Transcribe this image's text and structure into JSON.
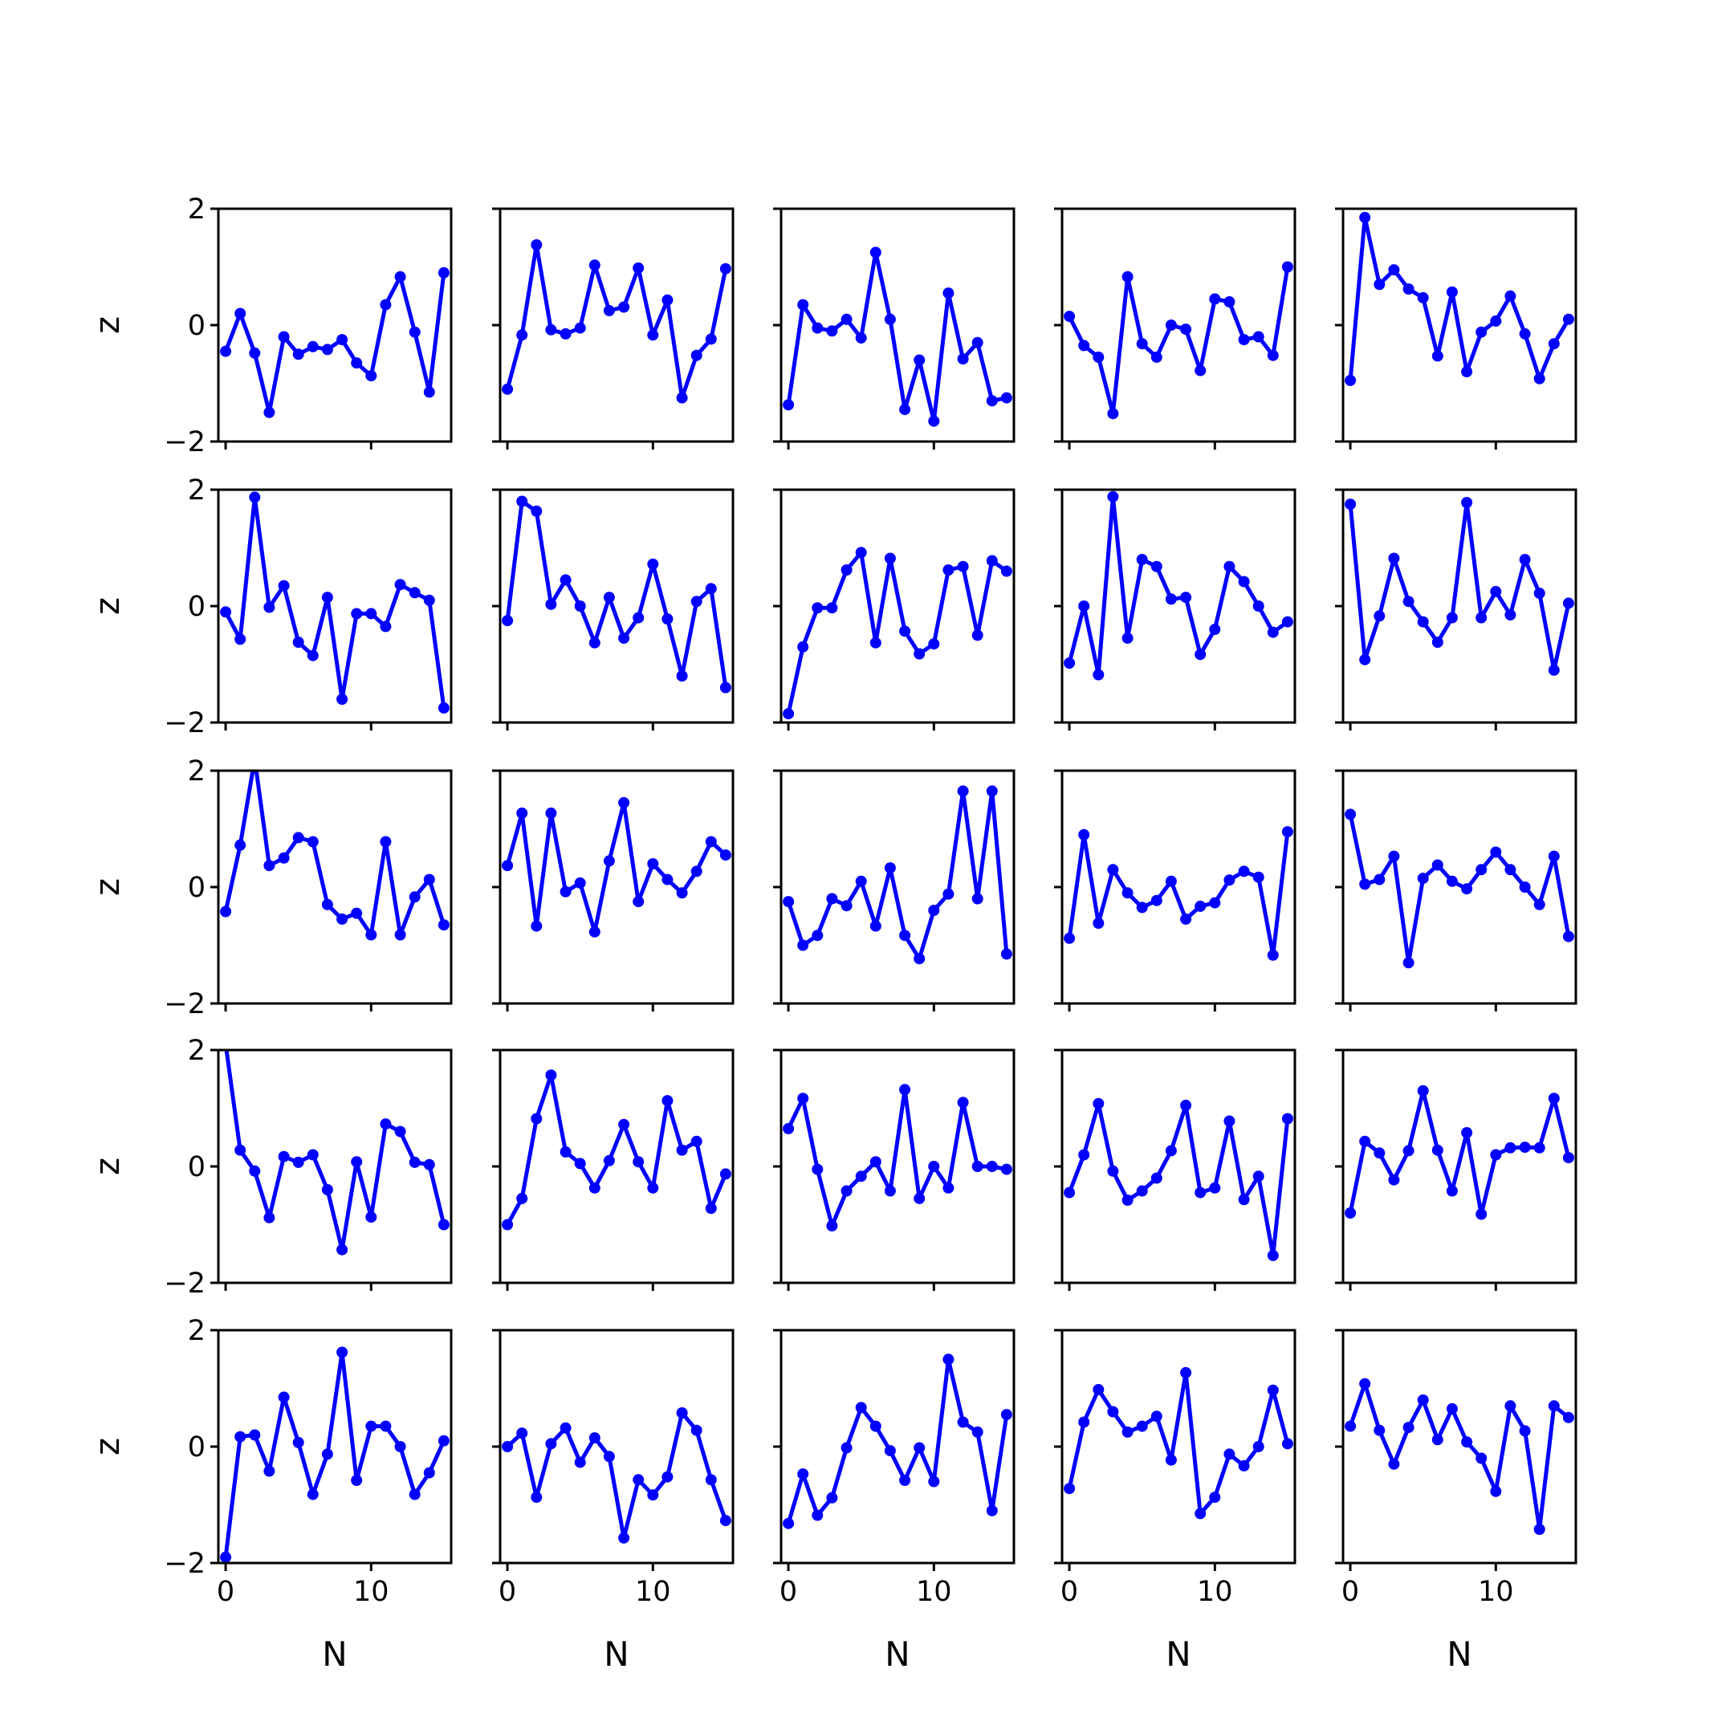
{
  "chart_data": {
    "type": "line",
    "layout": "grid 5x5",
    "sharex": true,
    "sharey": true,
    "xlabel": "N",
    "ylabel": "z",
    "xlim": [
      -0.5,
      15.5
    ],
    "ylim": [
      -2,
      2
    ],
    "xticks": [
      0,
      10
    ],
    "yticks": [
      -2,
      0,
      2
    ],
    "x": [
      0,
      1,
      2,
      3,
      4,
      5,
      6,
      7,
      8,
      9,
      10,
      11,
      12,
      13,
      14,
      15
    ],
    "color": "#0000ff",
    "marker": "circle",
    "panels": [
      {
        "values": [
          -0.45,
          0.2,
          -0.48,
          -1.5,
          -0.2,
          -0.5,
          -0.37,
          -0.42,
          -0.25,
          -0.65,
          -0.87,
          0.35,
          0.83,
          -0.12,
          -1.15,
          0.9
        ]
      },
      {
        "values": [
          -1.1,
          -0.17,
          1.38,
          -0.08,
          -0.15,
          -0.05,
          1.03,
          0.25,
          0.31,
          0.98,
          -0.17,
          0.43,
          -1.25,
          -0.52,
          -0.24,
          0.97
        ]
      },
      {
        "values": [
          -1.37,
          0.35,
          -0.05,
          -0.1,
          0.1,
          -0.22,
          1.25,
          0.1,
          -1.45,
          -0.6,
          -1.65,
          0.55,
          -0.58,
          -0.3,
          -1.3,
          -1.25
        ]
      },
      {
        "values": [
          0.15,
          -0.35,
          -0.55,
          -1.52,
          0.83,
          -0.32,
          -0.55,
          0.0,
          -0.07,
          -0.78,
          0.45,
          0.4,
          -0.25,
          -0.2,
          -0.52,
          1.0
        ]
      },
      {
        "values": [
          -0.95,
          1.85,
          0.7,
          0.95,
          0.62,
          0.47,
          -0.53,
          0.57,
          -0.8,
          -0.12,
          0.07,
          0.5,
          -0.15,
          -0.92,
          -0.32,
          0.1
        ]
      },
      {
        "values": [
          -0.1,
          -0.57,
          1.87,
          -0.02,
          0.35,
          -0.62,
          -0.85,
          0.15,
          -1.6,
          -0.13,
          -0.13,
          -0.35,
          0.37,
          0.23,
          0.1,
          -1.75
        ]
      },
      {
        "values": [
          -0.25,
          1.8,
          1.63,
          0.03,
          0.45,
          0.0,
          -0.63,
          0.15,
          -0.55,
          -0.2,
          0.72,
          -0.22,
          -1.2,
          0.08,
          0.3,
          -1.4
        ]
      },
      {
        "values": [
          -1.85,
          -0.7,
          -0.03,
          -0.03,
          0.62,
          0.92,
          -0.63,
          0.82,
          -0.43,
          -0.82,
          -0.65,
          0.62,
          0.68,
          -0.5,
          0.78,
          0.6
        ]
      },
      {
        "values": [
          -0.98,
          0.0,
          -1.18,
          1.88,
          -0.55,
          0.8,
          0.68,
          0.12,
          0.15,
          -0.83,
          -0.4,
          0.68,
          0.42,
          0.0,
          -0.45,
          -0.27
        ]
      },
      {
        "values": [
          1.75,
          -0.92,
          -0.17,
          0.82,
          0.08,
          -0.27,
          -0.62,
          -0.2,
          1.78,
          -0.2,
          0.25,
          -0.15,
          0.8,
          0.22,
          -1.1,
          0.05
        ]
      },
      {
        "values": [
          -0.42,
          0.72,
          2.2,
          0.37,
          0.5,
          0.85,
          0.78,
          -0.3,
          -0.55,
          -0.45,
          -0.82,
          0.78,
          -0.82,
          -0.17,
          0.13,
          -0.65
        ]
      },
      {
        "values": [
          0.37,
          1.27,
          -0.67,
          1.27,
          -0.08,
          0.07,
          -0.77,
          0.45,
          1.45,
          -0.25,
          0.4,
          0.13,
          -0.1,
          0.27,
          0.78,
          0.55
        ]
      },
      {
        "values": [
          -0.25,
          -1.0,
          -0.83,
          -0.2,
          -0.32,
          0.1,
          -0.67,
          0.33,
          -0.83,
          -1.23,
          -0.4,
          -0.12,
          1.65,
          -0.2,
          1.65,
          -1.15
        ]
      },
      {
        "values": [
          -0.88,
          0.9,
          -0.62,
          0.3,
          -0.1,
          -0.35,
          -0.23,
          0.1,
          -0.55,
          -0.33,
          -0.27,
          0.12,
          0.27,
          0.17,
          -1.17,
          0.95
        ]
      },
      {
        "values": [
          1.25,
          0.05,
          0.13,
          0.53,
          -1.3,
          0.15,
          0.38,
          0.1,
          -0.03,
          0.3,
          0.6,
          0.3,
          0.0,
          -0.3,
          0.53,
          -0.85
        ]
      },
      {
        "values": [
          2.1,
          0.28,
          -0.08,
          -0.88,
          0.17,
          0.07,
          0.2,
          -0.4,
          -1.43,
          0.08,
          -0.87,
          0.73,
          0.6,
          0.07,
          0.03,
          -1.0
        ]
      },
      {
        "values": [
          -1.0,
          -0.55,
          0.82,
          1.57,
          0.25,
          0.05,
          -0.37,
          0.1,
          0.72,
          0.08,
          -0.37,
          1.13,
          0.28,
          0.43,
          -0.72,
          -0.13
        ]
      },
      {
        "values": [
          0.65,
          1.17,
          -0.05,
          -1.02,
          -0.42,
          -0.17,
          0.08,
          -0.42,
          1.32,
          -0.55,
          0.0,
          -0.37,
          1.1,
          0.0,
          0.0,
          -0.05
        ]
      },
      {
        "values": [
          -0.45,
          0.2,
          1.08,
          -0.08,
          -0.58,
          -0.42,
          -0.2,
          0.27,
          1.05,
          -0.45,
          -0.37,
          0.78,
          -0.57,
          -0.17,
          -1.53,
          0.82
        ]
      },
      {
        "values": [
          -0.8,
          0.43,
          0.23,
          -0.23,
          0.27,
          1.3,
          0.28,
          -0.42,
          0.58,
          -0.82,
          0.2,
          0.32,
          0.33,
          0.32,
          1.17,
          0.15
        ]
      },
      {
        "values": [
          -1.9,
          0.17,
          0.2,
          -0.42,
          0.85,
          0.07,
          -0.82,
          -0.13,
          1.62,
          -0.58,
          0.35,
          0.35,
          0.0,
          -0.82,
          -0.45,
          0.1
        ]
      },
      {
        "values": [
          0.0,
          0.23,
          -0.87,
          0.05,
          0.32,
          -0.27,
          0.15,
          -0.17,
          -1.57,
          -0.57,
          -0.83,
          -0.52,
          0.58,
          0.28,
          -0.57,
          -1.27
        ]
      },
      {
        "values": [
          -1.32,
          -0.47,
          -1.18,
          -0.88,
          -0.02,
          0.67,
          0.35,
          -0.07,
          -0.58,
          -0.02,
          -0.6,
          1.5,
          0.42,
          0.25,
          -1.1,
          0.55
        ]
      },
      {
        "values": [
          -0.72,
          0.42,
          0.98,
          0.6,
          0.25,
          0.35,
          0.52,
          -0.23,
          1.27,
          -1.15,
          -0.87,
          -0.13,
          -0.33,
          0.0,
          0.97,
          0.05
        ]
      },
      {
        "values": [
          0.35,
          1.08,
          0.28,
          -0.3,
          0.33,
          0.8,
          0.12,
          0.65,
          0.08,
          -0.2,
          -0.77,
          0.7,
          0.27,
          -1.42,
          0.7,
          0.5
        ]
      }
    ]
  }
}
